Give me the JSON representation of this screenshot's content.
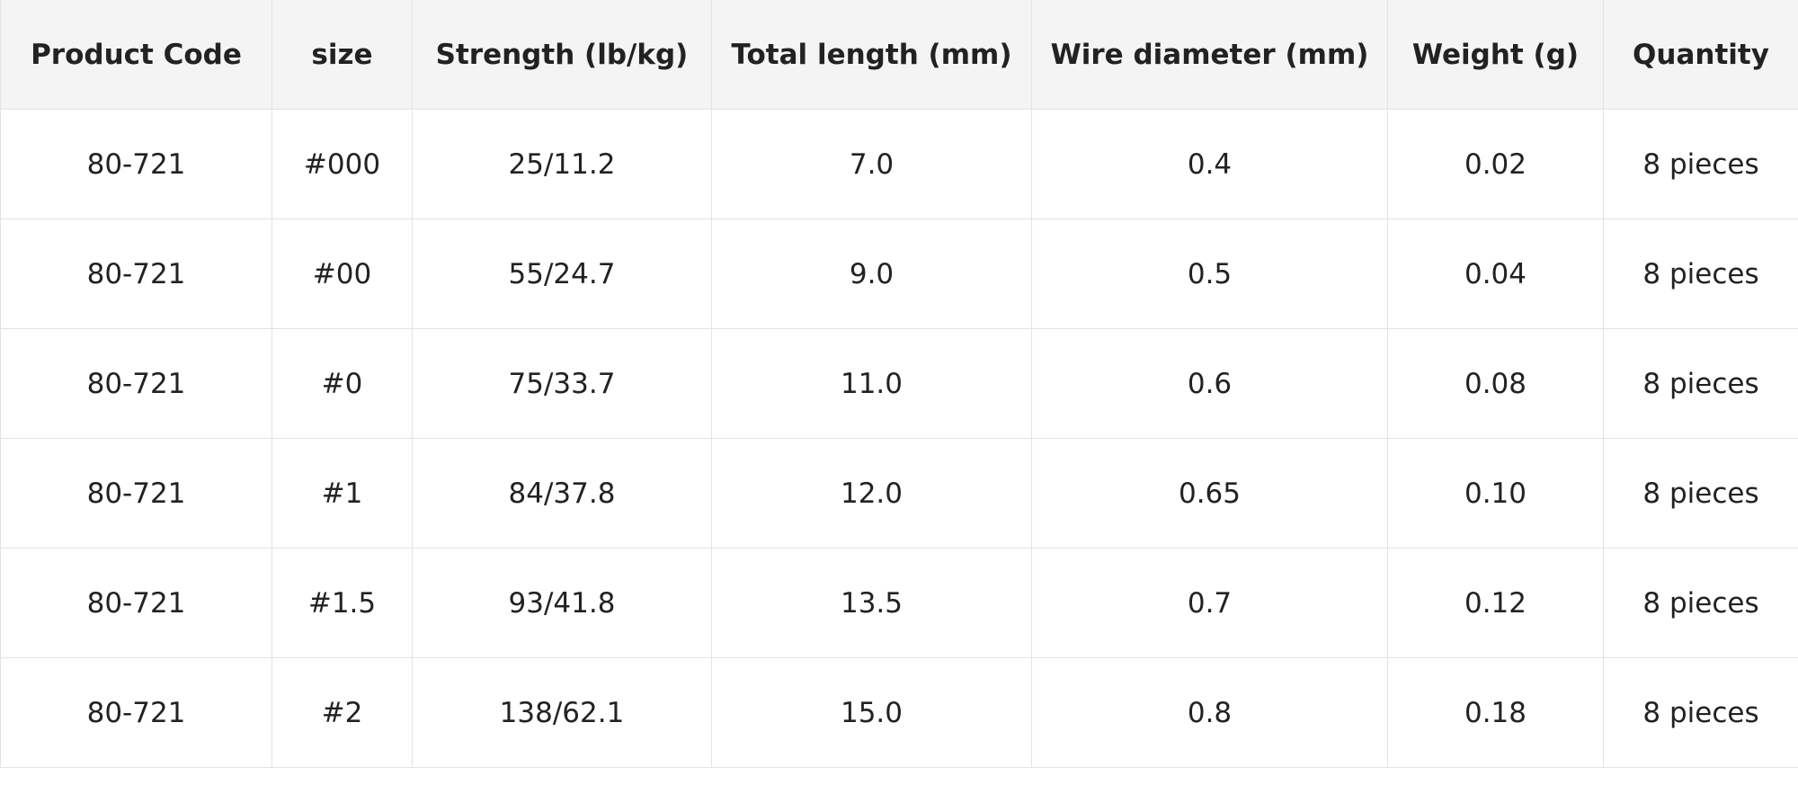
{
  "table": {
    "header": [
      "Product Code",
      "size",
      "Strength (lb/kg)",
      "Total length (mm)",
      "Wire diameter (mm)",
      "Weight (g)",
      "Quantity"
    ],
    "rows": [
      [
        "80-721",
        "#000",
        "25/11.2",
        "7.0",
        "0.4",
        "0.02",
        "8 pieces"
      ],
      [
        "80-721",
        "#00",
        "55/24.7",
        "9.0",
        "0.5",
        "0.04",
        "8 pieces"
      ],
      [
        "80-721",
        "#0",
        "75/33.7",
        "11.0",
        "0.6",
        "0.08",
        "8 pieces"
      ],
      [
        "80-721",
        "#1",
        "84/37.8",
        "12.0",
        "0.65",
        "0.10",
        "8 pieces"
      ],
      [
        "80-721",
        "#1.5",
        "93/41.8",
        "13.5",
        "0.7",
        "0.12",
        "8 pieces"
      ],
      [
        "80-721",
        "#2",
        "138/62.1",
        "15.0",
        "0.8",
        "0.18",
        "8 pieces"
      ]
    ]
  }
}
